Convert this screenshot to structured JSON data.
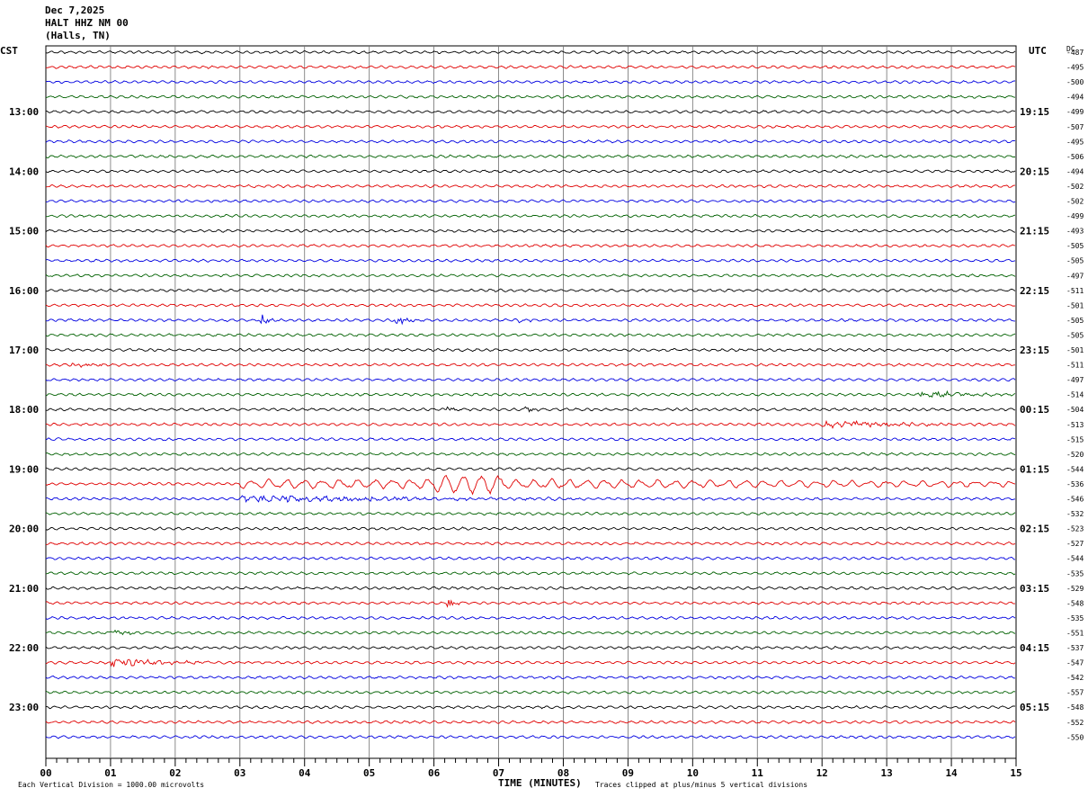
{
  "header": {
    "date": "Dec 7,2025",
    "station": "HALT HHZ NM 00",
    "location": "(Halls, TN)"
  },
  "left_tz": "CST",
  "right_tz": "UTC",
  "dc_label": "DC",
  "footer": {
    "scale_note": "Each Vertical Division = 1000.00 microvolts",
    "xlabel": "TIME (MINUTES)",
    "clip_note": "Traces clipped at plus/minus 5 vertical divisions"
  },
  "chart_data": {
    "type": "line",
    "xlabel": "TIME (MINUTES)",
    "xlim": [
      0,
      15
    ],
    "x_ticks": [
      "00",
      "01",
      "02",
      "03",
      "04",
      "05",
      "06",
      "07",
      "08",
      "09",
      "10",
      "11",
      "12",
      "13",
      "14",
      "15"
    ],
    "left_hour_labels": [
      "13:00",
      "14:00",
      "15:00",
      "16:00",
      "17:00",
      "18:00",
      "19:00",
      "20:00",
      "21:00",
      "22:00",
      "23:00"
    ],
    "right_hour_labels": [
      "19:15",
      "20:15",
      "21:15",
      "22:15",
      "23:15",
      "00:15",
      "01:15",
      "02:15",
      "03:15",
      "04:15",
      "05:15"
    ],
    "trace_colors": [
      "#000000",
      "#e00000",
      "#0000e0",
      "#006000"
    ],
    "traces_per_hour": 4,
    "dc_offsets": [
      "487",
      "495",
      "500",
      "494",
      "499",
      "507",
      "495",
      "506",
      "494",
      "502",
      "502",
      "499",
      "493",
      "505",
      "505",
      "497",
      "511",
      "501",
      "505",
      "505",
      "501",
      "511",
      "497",
      "514",
      "504",
      "513",
      "515",
      "520",
      "544",
      "536",
      "546",
      "532",
      "523",
      "527",
      "544",
      "535",
      "529",
      "548",
      "535",
      "551",
      "537",
      "547",
      "542",
      "557",
      "548",
      "552",
      "550"
    ],
    "events": [
      {
        "trace": 18,
        "minute": 3.3,
        "duration": 0.5,
        "amp": 3.0
      },
      {
        "trace": 18,
        "minute": 5.4,
        "duration": 0.6,
        "amp": 2.2
      },
      {
        "trace": 18,
        "minute": 7.3,
        "duration": 0.3,
        "amp": 1.5
      },
      {
        "trace": 21,
        "minute": 0.4,
        "duration": 1.0,
        "amp": 1.4
      },
      {
        "trace": 24,
        "minute": 7.4,
        "duration": 0.4,
        "amp": 2.0
      },
      {
        "trace": 24,
        "minute": 6.2,
        "duration": 0.4,
        "amp": 1.6
      },
      {
        "trace": 23,
        "minute": 13.5,
        "duration": 2.0,
        "amp": 1.8
      },
      {
        "trace": 25,
        "minute": 12.0,
        "duration": 4.0,
        "amp": 1.6
      },
      {
        "trace": 29,
        "minute": 3.0,
        "duration": 12.0,
        "amp": 5.0,
        "teleseism": true
      },
      {
        "trace": 30,
        "minute": 3.0,
        "duration": 10.0,
        "amp": 1.3
      },
      {
        "trace": 37,
        "minute": 6.2,
        "duration": 0.3,
        "amp": 5.0
      },
      {
        "trace": 41,
        "minute": 1.0,
        "duration": 3.0,
        "amp": 1.6
      },
      {
        "trace": 39,
        "minute": 1.0,
        "duration": 1.0,
        "amp": 1.3
      }
    ]
  }
}
